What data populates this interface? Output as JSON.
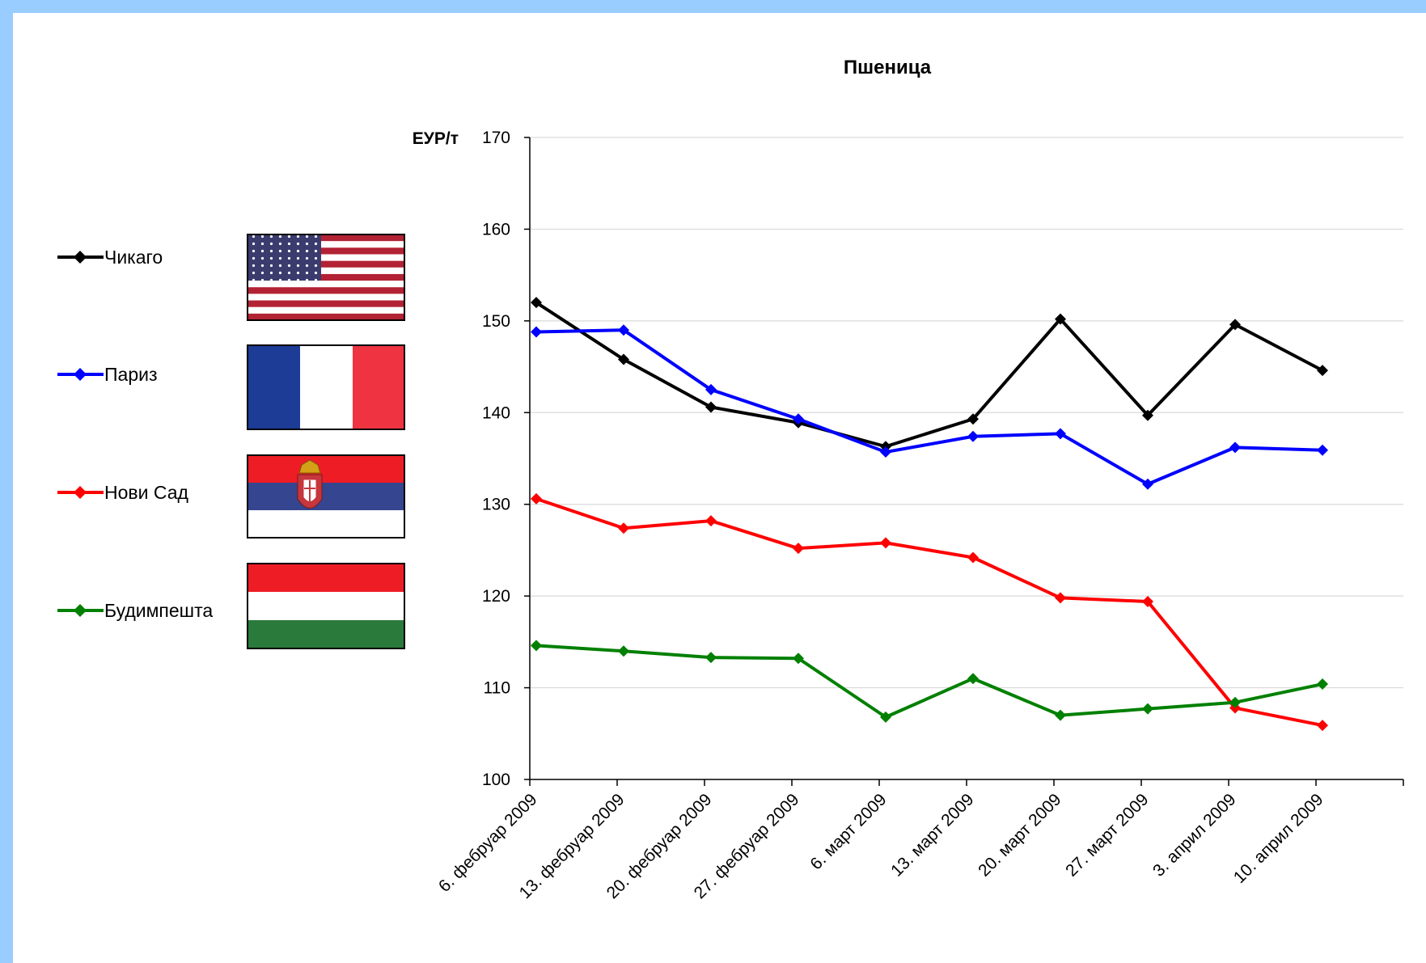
{
  "chart_data": {
    "type": "line",
    "title": "Пшеница",
    "ylabel": "ЕУР/т",
    "xlabel": "",
    "ylim": [
      100,
      170
    ],
    "yticks": [
      100,
      110,
      120,
      130,
      140,
      150,
      160,
      170
    ],
    "grid": true,
    "legend_position": "left",
    "categories": [
      "6. фебруар 2009",
      "13. фебруар 2009",
      "20. фебруар 2009",
      "27. фебруар 2009",
      "6. март 2009",
      "13. март 2009",
      "20. март 2009",
      "27. март 2009",
      "3. април 2009",
      "10. април 2009"
    ],
    "series": [
      {
        "name": "Чикаго",
        "color": "#000000",
        "flag": "usa-flag",
        "values": [
          152.0,
          145.8,
          140.6,
          138.9,
          136.3,
          139.3,
          150.2,
          139.7,
          149.6,
          144.6
        ]
      },
      {
        "name": "Париз",
        "color": "#0000ff",
        "flag": "france-flag",
        "values": [
          148.8,
          149.0,
          142.5,
          139.3,
          135.7,
          137.4,
          137.7,
          132.2,
          136.2,
          135.9
        ]
      },
      {
        "name": "Нови Сад",
        "color": "#ff0000",
        "flag": "serbia-flag",
        "values": [
          130.6,
          127.4,
          128.2,
          125.2,
          125.8,
          124.2,
          119.8,
          119.4,
          107.8,
          105.9
        ]
      },
      {
        "name": "Будимпешта",
        "color": "#008000",
        "flag": "hungary-flag",
        "values": [
          114.6,
          114.0,
          113.3,
          113.2,
          106.8,
          111.0,
          107.0,
          107.7,
          108.4,
          110.4
        ]
      }
    ]
  }
}
